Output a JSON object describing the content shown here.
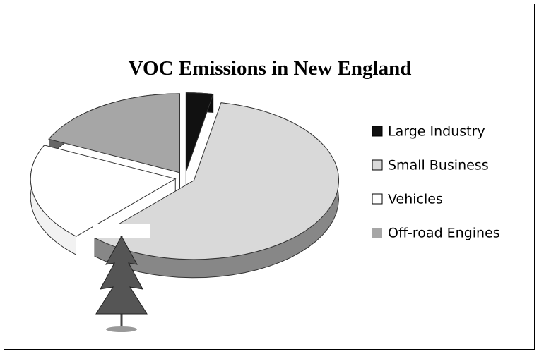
{
  "chart_data": {
    "type": "pie",
    "title": "VOC Emissions in New England",
    "categories": [
      "Large Industry",
      "Small Business",
      "Vehicles",
      "Off-road Engines"
    ],
    "values": [
      3,
      59,
      20,
      18
    ],
    "colors": [
      "#111111",
      "#d9d9d9",
      "#ffffff",
      "#a6a6a6"
    ],
    "legend": "right"
  }
}
